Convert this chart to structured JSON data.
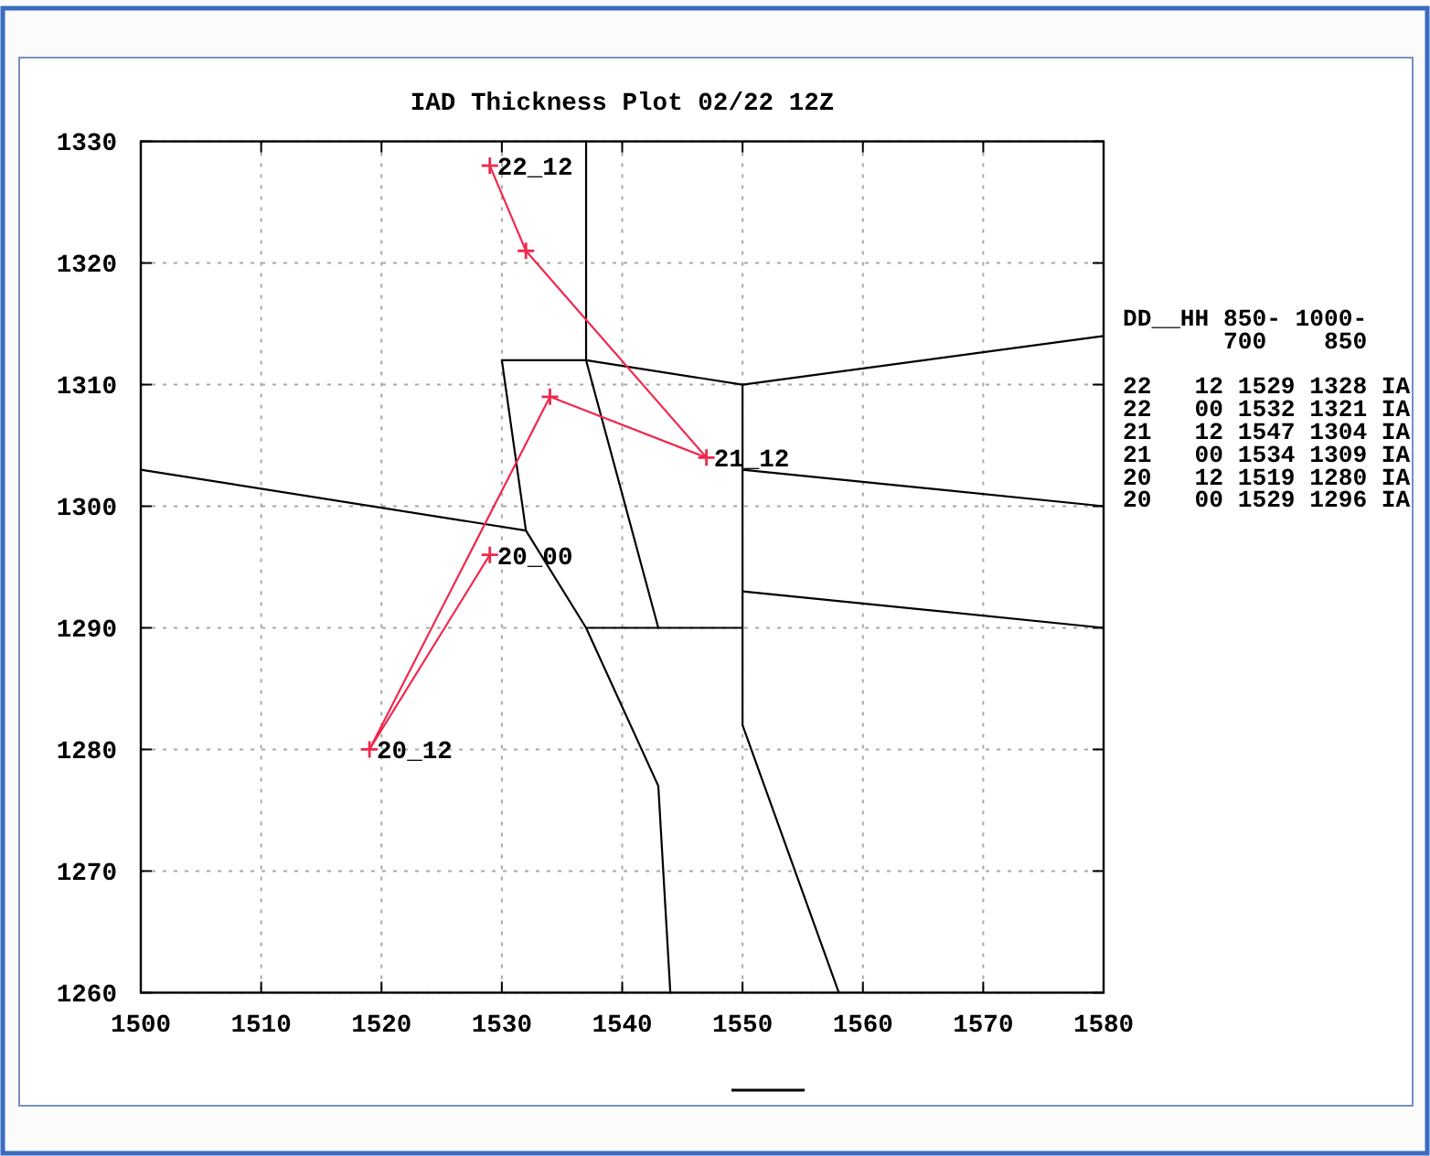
{
  "chart_data": {
    "type": "line",
    "title": "IAD Thickness Plot 02/22 12Z",
    "xlim": [
      1500,
      1580
    ],
    "xticks": [
      1500,
      1510,
      1520,
      1530,
      1540,
      1550,
      1560,
      1570,
      1580
    ],
    "ylim": [
      1260,
      1330
    ],
    "yticks": [
      1260,
      1270,
      1280,
      1290,
      1300,
      1310,
      1320,
      1330
    ],
    "grid": true,
    "marker": "cross",
    "series": [
      {
        "color": "#f0284c",
        "x": [
          1529,
          1532,
          1547,
          1534,
          1519,
          1529
        ],
        "values": [
          1328,
          1321,
          1304,
          1309,
          1280,
          1296
        ]
      },
      {
        "color": "#000000",
        "marker": "none",
        "x": [
          1537,
          1537,
          1543
        ],
        "values": [
          1330,
          1312,
          1290
        ]
      },
      {
        "color": "#000000",
        "marker": "none",
        "x": [
          1544,
          1543,
          1537,
          1532,
          1530,
          1537,
          1550,
          1580
        ],
        "values": [
          1260,
          1277,
          1290,
          1298,
          1312,
          1312,
          1310,
          1314
        ]
      },
      {
        "color": "#000000",
        "marker": "none",
        "x": [
          1500,
          1532
        ],
        "values": [
          1303,
          1298
        ]
      },
      {
        "color": "#000000",
        "marker": "none",
        "x": [
          1537,
          1550
        ],
        "values": [
          1290,
          1290
        ]
      },
      {
        "color": "#000000",
        "marker": "none",
        "x": [
          1550,
          1550,
          1558
        ],
        "values": [
          1310,
          1282,
          1260
        ]
      },
      {
        "color": "#000000",
        "marker": "none",
        "x": [
          1550,
          1580
        ],
        "values": [
          1303,
          1300
        ]
      },
      {
        "color": "#000000",
        "marker": "none",
        "x": [
          1550,
          1580
        ],
        "values": [
          1293,
          1290
        ]
      }
    ],
    "annotations": [
      {
        "text": "22_12",
        "x": 1529,
        "y": 1328
      },
      {
        "text": "21_12",
        "x": 1547,
        "y": 1304
      },
      {
        "text": "20_00",
        "x": 1529,
        "y": 1296
      },
      {
        "text": "20_12",
        "x": 1519,
        "y": 1280
      },
      "DD__HH 850- 1000-",
      "       700    850",
      "22   12 1529 1328 IA",
      "22   00 1532 1321 IA",
      "21   12 1547 1304 IA",
      "21   00 1534 1309 IA",
      "20   12 1519 1280 IA",
      "20   00 1529 1296 IA"
    ]
  }
}
